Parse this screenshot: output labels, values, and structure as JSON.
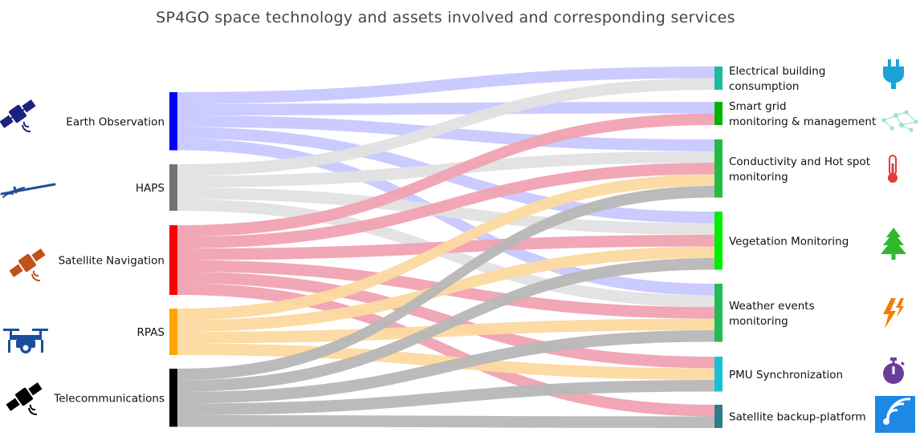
{
  "title": "SP4GO space technology and assets involved and corresponding services",
  "sources": [
    {
      "id": "eo",
      "label": "Earth Observation",
      "color": "#0000ff",
      "icon": "satellite-icon"
    },
    {
      "id": "haps",
      "label": "HAPS",
      "color": "#737373",
      "icon": "haps-aircraft-icon"
    },
    {
      "id": "nav",
      "label": "Satellite Navigation",
      "color": "#ff0000",
      "icon": "navigation-satellite-icon"
    },
    {
      "id": "rpas",
      "label": "RPAS",
      "color": "#ffa500",
      "icon": "drone-icon"
    },
    {
      "id": "tel",
      "label": "Telecommunications",
      "color": "#000000",
      "icon": "telecom-satellite-icon"
    }
  ],
  "targets": [
    {
      "id": "elec",
      "label_lines": [
        "Electrical building",
        "consumption"
      ],
      "color": "#1abc9c",
      "icon": "plug-icon"
    },
    {
      "id": "grid",
      "label_lines": [
        "Smart grid",
        "monitoring & management"
      ],
      "color": "#00b300",
      "icon": "network-icon"
    },
    {
      "id": "cond",
      "label_lines": [
        "Conductivity and Hot spot",
        "monitoring"
      ],
      "color": "#22bb44",
      "icon": "thermometer-icon"
    },
    {
      "id": "veg",
      "label_lines": [
        "Vegetation Monitoring"
      ],
      "color": "#00ee00",
      "icon": "tree-icon"
    },
    {
      "id": "wea",
      "label_lines": [
        "Weather events",
        "monitoring"
      ],
      "color": "#22bb55",
      "icon": "lightning-icon"
    },
    {
      "id": "pmu",
      "label_lines": [
        "PMU Synchronization"
      ],
      "color": "#16c2d6",
      "icon": "stopwatch-icon"
    },
    {
      "id": "sat",
      "label_lines": [
        "Satellite backup-platform"
      ],
      "color": "#2e7d8a",
      "icon": "signal-icon"
    }
  ],
  "links": [
    {
      "source": "eo",
      "target": "elec",
      "value": 1
    },
    {
      "source": "eo",
      "target": "grid",
      "value": 1
    },
    {
      "source": "eo",
      "target": "cond",
      "value": 1
    },
    {
      "source": "eo",
      "target": "veg",
      "value": 1
    },
    {
      "source": "eo",
      "target": "wea",
      "value": 1
    },
    {
      "source": "haps",
      "target": "elec",
      "value": 1
    },
    {
      "source": "haps",
      "target": "cond",
      "value": 1
    },
    {
      "source": "haps",
      "target": "veg",
      "value": 1
    },
    {
      "source": "haps",
      "target": "wea",
      "value": 1
    },
    {
      "source": "nav",
      "target": "grid",
      "value": 1
    },
    {
      "source": "nav",
      "target": "cond",
      "value": 1
    },
    {
      "source": "nav",
      "target": "veg",
      "value": 1
    },
    {
      "source": "nav",
      "target": "wea",
      "value": 1
    },
    {
      "source": "nav",
      "target": "pmu",
      "value": 1
    },
    {
      "source": "nav",
      "target": "sat",
      "value": 1
    },
    {
      "source": "rpas",
      "target": "cond",
      "value": 1
    },
    {
      "source": "rpas",
      "target": "veg",
      "value": 1
    },
    {
      "source": "rpas",
      "target": "wea",
      "value": 1
    },
    {
      "source": "rpas",
      "target": "pmu",
      "value": 1
    },
    {
      "source": "tel",
      "target": "cond",
      "value": 1
    },
    {
      "source": "tel",
      "target": "veg",
      "value": 1
    },
    {
      "source": "tel",
      "target": "wea",
      "value": 1
    },
    {
      "source": "tel",
      "target": "pmu",
      "value": 1
    },
    {
      "source": "tel",
      "target": "sat",
      "value": 1
    }
  ],
  "link_colors": {
    "eo": "#c8c8ff",
    "haps": "#e2e2e2",
    "nav": "#f0a2b2",
    "rpas": "#fdd9a0",
    "tel": "#b7b7b7"
  }
}
